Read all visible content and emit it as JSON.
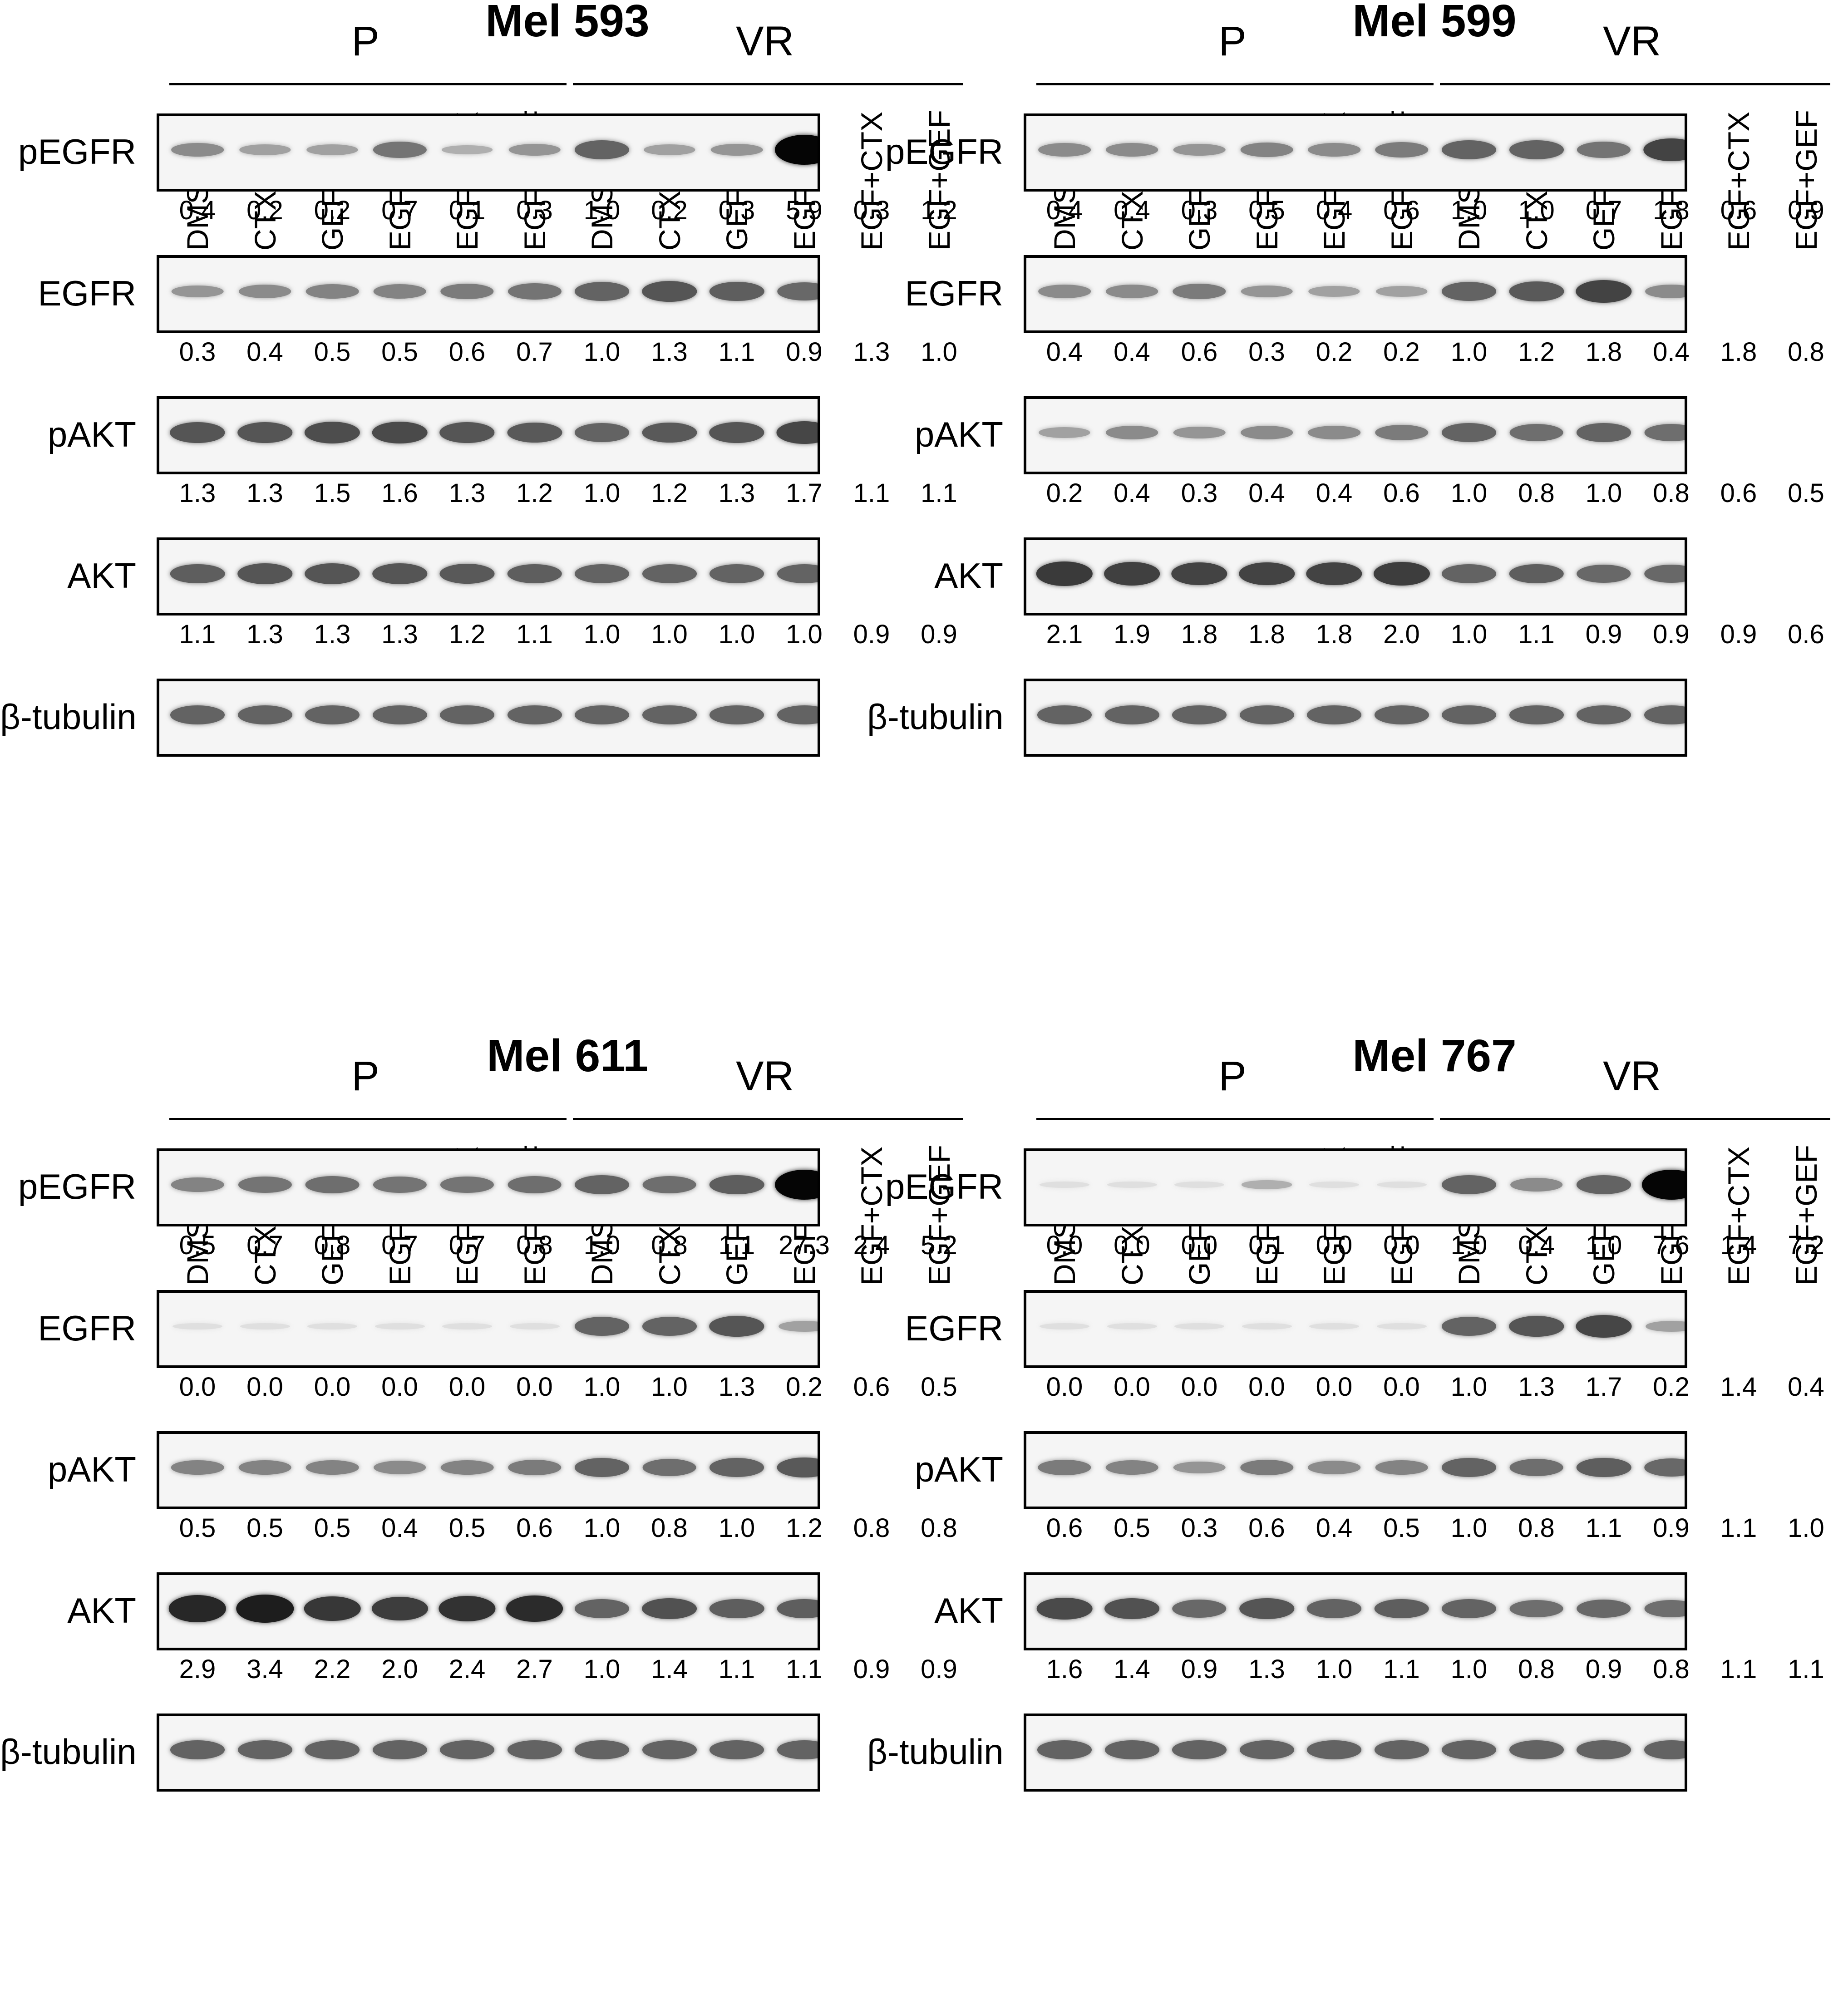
{
  "lanes": [
    "DMSO",
    "CTX",
    "GEF",
    "EGF",
    "EGF+CTX",
    "EGF+GEF",
    "DMSO",
    "CTX",
    "GEF",
    "EGF",
    "EGF+CTX",
    "EGF+GEF"
  ],
  "group_labels": [
    "P",
    "VR"
  ],
  "panels": [
    {
      "title": "Mel 593",
      "rows": [
        {
          "label": "pEGFR",
          "values": [
            "0.4",
            "0.2",
            "0.2",
            "0.7",
            "0.1",
            "0.3",
            "1.0",
            "0.2",
            "0.3",
            "5.9",
            "0.3",
            "1.2"
          ],
          "intensity": [
            0.4,
            0.2,
            0.2,
            0.7,
            0.1,
            0.3,
            1.0,
            0.2,
            0.3,
            5.9,
            0.3,
            1.2
          ]
        },
        {
          "label": "EGFR",
          "values": [
            "0.3",
            "0.4",
            "0.5",
            "0.5",
            "0.6",
            "0.7",
            "1.0",
            "1.3",
            "1.1",
            "0.9",
            "1.3",
            "1.0"
          ],
          "intensity": [
            0.3,
            0.4,
            0.5,
            0.5,
            0.6,
            0.7,
            1.0,
            1.3,
            1.1,
            0.9,
            1.3,
            1.0
          ]
        },
        {
          "label": "pAKT",
          "values": [
            "1.3",
            "1.3",
            "1.5",
            "1.6",
            "1.3",
            "1.2",
            "1.0",
            "1.2",
            "1.3",
            "1.7",
            "1.1",
            "1.1"
          ],
          "intensity": [
            1.3,
            1.3,
            1.5,
            1.6,
            1.3,
            1.2,
            1.0,
            1.2,
            1.3,
            1.7,
            1.1,
            1.1
          ]
        },
        {
          "label": "AKT",
          "values": [
            "1.1",
            "1.3",
            "1.3",
            "1.3",
            "1.2",
            "1.1",
            "1.0",
            "1.0",
            "1.0",
            "1.0",
            "0.9",
            "0.9"
          ],
          "intensity": [
            1.1,
            1.3,
            1.3,
            1.3,
            1.2,
            1.1,
            1.0,
            1.0,
            1.0,
            1.0,
            0.9,
            0.9
          ]
        },
        {
          "label": "β-tubulin",
          "values": null,
          "intensity": [
            1,
            1,
            1,
            1,
            1,
            1,
            1,
            1,
            1,
            1,
            1,
            1
          ]
        }
      ]
    },
    {
      "title": "Mel 599",
      "rows": [
        {
          "label": "pEGFR",
          "values": [
            "0.4",
            "0.4",
            "0.3",
            "0.5",
            "0.4",
            "0.6",
            "1.0",
            "1.0",
            "0.7",
            "1.8",
            "0.6",
            "0.9"
          ],
          "intensity": [
            0.4,
            0.4,
            0.3,
            0.5,
            0.4,
            0.6,
            1.0,
            1.0,
            0.7,
            1.8,
            0.6,
            0.9
          ]
        },
        {
          "label": "EGFR",
          "values": [
            "0.4",
            "0.4",
            "0.6",
            "0.3",
            "0.2",
            "0.2",
            "1.0",
            "1.2",
            "1.8",
            "0.4",
            "1.8",
            "0.8"
          ],
          "intensity": [
            0.4,
            0.4,
            0.6,
            0.3,
            0.2,
            0.2,
            1.0,
            1.2,
            1.8,
            0.4,
            1.8,
            0.8
          ]
        },
        {
          "label": "pAKT",
          "values": [
            "0.2",
            "0.4",
            "0.3",
            "0.4",
            "0.4",
            "0.6",
            "1.0",
            "0.8",
            "1.0",
            "0.8",
            "0.6",
            "0.5"
          ],
          "intensity": [
            0.2,
            0.4,
            0.3,
            0.4,
            0.4,
            0.6,
            1.0,
            0.8,
            1.0,
            0.8,
            0.6,
            0.5
          ]
        },
        {
          "label": "AKT",
          "values": [
            "2.1",
            "1.9",
            "1.8",
            "1.8",
            "1.8",
            "2.0",
            "1.0",
            "1.1",
            "0.9",
            "0.9",
            "0.9",
            "0.6"
          ],
          "intensity": [
            2.1,
            1.9,
            1.8,
            1.8,
            1.8,
            2.0,
            1.0,
            1.1,
            0.9,
            0.9,
            0.9,
            0.6
          ]
        },
        {
          "label": "β-tubulin",
          "values": null,
          "intensity": [
            1,
            1,
            1,
            1,
            1,
            1,
            1,
            1,
            1,
            1,
            1,
            1
          ]
        }
      ]
    },
    {
      "title": "Mel 611",
      "rows": [
        {
          "label": "pEGFR",
          "values": [
            "0.5",
            "0.7",
            "0.8",
            "0.7",
            "0.7",
            "0.8",
            "1.0",
            "0.8",
            "1.1",
            "27.3",
            "2.4",
            "5.2"
          ],
          "intensity": [
            0.5,
            0.7,
            0.8,
            0.7,
            0.7,
            0.8,
            1.0,
            0.8,
            1.1,
            27.3,
            2.4,
            5.2
          ]
        },
        {
          "label": "EGFR",
          "values": [
            "0.0",
            "0.0",
            "0.0",
            "0.0",
            "0.0",
            "0.0",
            "1.0",
            "1.0",
            "1.3",
            "0.2",
            "0.6",
            "0.5"
          ],
          "intensity": [
            0.0,
            0.0,
            0.0,
            0.0,
            0.0,
            0.0,
            1.0,
            1.0,
            1.3,
            0.2,
            0.6,
            0.5
          ]
        },
        {
          "label": "pAKT",
          "values": [
            "0.5",
            "0.5",
            "0.5",
            "0.4",
            "0.5",
            "0.6",
            "1.0",
            "0.8",
            "1.0",
            "1.2",
            "0.8",
            "0.8"
          ],
          "intensity": [
            0.5,
            0.5,
            0.5,
            0.4,
            0.5,
            0.6,
            1.0,
            0.8,
            1.0,
            1.2,
            0.8,
            0.8
          ]
        },
        {
          "label": "AKT",
          "values": [
            "2.9",
            "3.4",
            "2.2",
            "2.0",
            "2.4",
            "2.7",
            "1.0",
            "1.4",
            "1.1",
            "1.1",
            "0.9",
            "0.9"
          ],
          "intensity": [
            2.9,
            3.4,
            2.2,
            2.0,
            2.4,
            2.7,
            1.0,
            1.4,
            1.1,
            1.1,
            0.9,
            0.9
          ]
        },
        {
          "label": "β-tubulin",
          "values": null,
          "intensity": [
            1,
            1,
            1,
            1,
            1,
            1,
            1,
            1,
            1,
            1,
            1,
            1
          ]
        }
      ]
    },
    {
      "title": "Mel 767",
      "rows": [
        {
          "label": "pEGFR",
          "values": [
            "0.0",
            "0.0",
            "0.0",
            "0.1",
            "0.0",
            "0.0",
            "1.0",
            "0.4",
            "1.0",
            "7.6",
            "1.4",
            "7.2"
          ],
          "intensity": [
            0.0,
            0.0,
            0.0,
            0.1,
            0.0,
            0.0,
            1.0,
            0.4,
            1.0,
            7.6,
            1.4,
            7.2
          ]
        },
        {
          "label": "EGFR",
          "values": [
            "0.0",
            "0.0",
            "0.0",
            "0.0",
            "0.0",
            "0.0",
            "1.0",
            "1.3",
            "1.7",
            "0.2",
            "1.4",
            "0.4"
          ],
          "intensity": [
            0.0,
            0.0,
            0.0,
            0.0,
            0.0,
            0.0,
            1.0,
            1.3,
            1.7,
            0.2,
            1.4,
            0.4
          ]
        },
        {
          "label": "pAKT",
          "values": [
            "0.6",
            "0.5",
            "0.3",
            "0.6",
            "0.4",
            "0.5",
            "1.0",
            "0.8",
            "1.1",
            "0.9",
            "1.1",
            "1.0"
          ],
          "intensity": [
            0.6,
            0.5,
            0.3,
            0.6,
            0.4,
            0.5,
            1.0,
            0.8,
            1.1,
            0.9,
            1.1,
            1.0
          ]
        },
        {
          "label": "AKT",
          "values": [
            "1.6",
            "1.4",
            "0.9",
            "1.3",
            "1.0",
            "1.1",
            "1.0",
            "0.8",
            "0.9",
            "0.8",
            "1.1",
            "1.1"
          ],
          "intensity": [
            1.6,
            1.4,
            0.9,
            1.3,
            1.0,
            1.1,
            1.0,
            0.8,
            0.9,
            0.8,
            1.1,
            1.1
          ]
        },
        {
          "label": "β-tubulin",
          "values": null,
          "intensity": [
            1,
            1,
            1,
            1,
            1,
            1,
            1,
            1,
            1,
            1,
            1,
            1
          ]
        }
      ]
    }
  ]
}
